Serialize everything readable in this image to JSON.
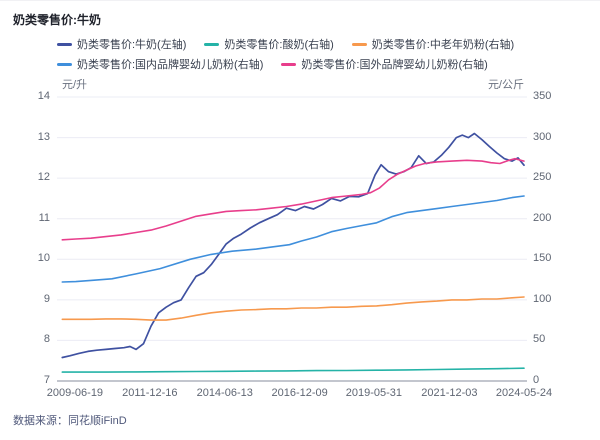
{
  "title": "奶类零售价:牛奶",
  "footer": {
    "source": "数据来源：同花顺iFinD"
  },
  "chart_data": {
    "type": "line",
    "title": "奶类零售价:牛奶",
    "legend_position": "top",
    "grid": true,
    "x_axis": {
      "min_year": 2009.04,
      "max_year": 2024.4,
      "tick_years": [
        2009.47,
        2011.96,
        2014.45,
        2016.94,
        2019.41,
        2021.92,
        2024.4
      ],
      "tick_labels": [
        "2009-06-19",
        "2011-12-16",
        "2014-06-13",
        "2016-12-09",
        "2019-05-31",
        "2021-12-03",
        "2024-05-24"
      ]
    },
    "left_axis": {
      "unit": "元/升",
      "min": 7,
      "max": 14,
      "ticks": [
        14,
        13,
        12,
        11,
        10,
        9,
        8,
        7
      ]
    },
    "right_axis": {
      "unit": "元/公斤",
      "min": 0,
      "max": 350,
      "ticks": [
        350,
        300,
        250,
        200,
        150,
        100,
        50,
        0
      ]
    },
    "grid_color": "#ebecf4",
    "axis_line_color": "#878e9c",
    "series": [
      {
        "name": "奶类零售价:牛奶(左轴)",
        "color": "#3f51a1",
        "axis": "left",
        "width": 1.7,
        "points": [
          [
            2009.05,
            7.58
          ],
          [
            2009.3,
            7.62
          ],
          [
            2009.6,
            7.68
          ],
          [
            2009.9,
            7.73
          ],
          [
            2010.2,
            7.76
          ],
          [
            2010.5,
            7.78
          ],
          [
            2010.8,
            7.8
          ],
          [
            2011.1,
            7.82
          ],
          [
            2011.3,
            7.85
          ],
          [
            2011.5,
            7.78
          ],
          [
            2011.75,
            7.92
          ],
          [
            2012.0,
            8.35
          ],
          [
            2012.25,
            8.68
          ],
          [
            2012.5,
            8.82
          ],
          [
            2012.75,
            8.93
          ],
          [
            2013.0,
            9.0
          ],
          [
            2013.25,
            9.3
          ],
          [
            2013.5,
            9.58
          ],
          [
            2013.75,
            9.67
          ],
          [
            2014.0,
            9.87
          ],
          [
            2014.25,
            10.12
          ],
          [
            2014.5,
            10.38
          ],
          [
            2014.75,
            10.52
          ],
          [
            2015.0,
            10.62
          ],
          [
            2015.3,
            10.77
          ],
          [
            2015.6,
            10.9
          ],
          [
            2015.9,
            11.0
          ],
          [
            2016.2,
            11.1
          ],
          [
            2016.5,
            11.26
          ],
          [
            2016.8,
            11.2
          ],
          [
            2017.1,
            11.3
          ],
          [
            2017.4,
            11.24
          ],
          [
            2017.7,
            11.35
          ],
          [
            2018.0,
            11.5
          ],
          [
            2018.3,
            11.44
          ],
          [
            2018.6,
            11.55
          ],
          [
            2018.9,
            11.54
          ],
          [
            2019.2,
            11.62
          ],
          [
            2019.45,
            12.08
          ],
          [
            2019.65,
            12.33
          ],
          [
            2019.9,
            12.16
          ],
          [
            2020.15,
            12.1
          ],
          [
            2020.4,
            12.16
          ],
          [
            2020.65,
            12.26
          ],
          [
            2020.9,
            12.55
          ],
          [
            2021.15,
            12.36
          ],
          [
            2021.4,
            12.4
          ],
          [
            2021.65,
            12.56
          ],
          [
            2021.9,
            12.76
          ],
          [
            2022.15,
            13.0
          ],
          [
            2022.35,
            13.06
          ],
          [
            2022.55,
            13.0
          ],
          [
            2022.75,
            13.1
          ],
          [
            2023.0,
            12.95
          ],
          [
            2023.25,
            12.78
          ],
          [
            2023.5,
            12.62
          ],
          [
            2023.75,
            12.48
          ],
          [
            2024.0,
            12.42
          ],
          [
            2024.2,
            12.5
          ],
          [
            2024.4,
            12.32
          ]
        ]
      },
      {
        "name": "奶类零售价:酸奶(右轴)",
        "color": "#25b3a7",
        "axis": "right",
        "width": 1.6,
        "points": [
          [
            2009.05,
            11
          ],
          [
            2010.5,
            11
          ],
          [
            2011.5,
            11.2
          ],
          [
            2012.5,
            11.5
          ],
          [
            2013.5,
            11.7
          ],
          [
            2014.5,
            12
          ],
          [
            2015.5,
            12.2
          ],
          [
            2016.5,
            12.5
          ],
          [
            2017.5,
            12.8
          ],
          [
            2018.5,
            13
          ],
          [
            2019.5,
            13.3
          ],
          [
            2020.5,
            13.7
          ],
          [
            2021.5,
            14.2
          ],
          [
            2022.5,
            14.7
          ],
          [
            2023.5,
            15.2
          ],
          [
            2024.4,
            15.8
          ]
        ]
      },
      {
        "name": "奶类零售价:中老年奶粉(右轴)",
        "color": "#f7994d",
        "axis": "right",
        "width": 1.6,
        "points": [
          [
            2009.05,
            76
          ],
          [
            2010.0,
            76
          ],
          [
            2010.5,
            76.5
          ],
          [
            2011.0,
            76.5
          ],
          [
            2011.5,
            76
          ],
          [
            2012.0,
            75
          ],
          [
            2012.5,
            75
          ],
          [
            2013.0,
            77.5
          ],
          [
            2013.5,
            81
          ],
          [
            2014.0,
            84
          ],
          [
            2014.5,
            86
          ],
          [
            2015.0,
            87.5
          ],
          [
            2015.5,
            88
          ],
          [
            2016.0,
            89
          ],
          [
            2016.5,
            89
          ],
          [
            2017.0,
            90
          ],
          [
            2017.5,
            90
          ],
          [
            2018.0,
            91
          ],
          [
            2018.5,
            91
          ],
          [
            2019.0,
            92
          ],
          [
            2019.5,
            92.5
          ],
          [
            2020.0,
            94
          ],
          [
            2020.5,
            96
          ],
          [
            2021.0,
            97.5
          ],
          [
            2021.5,
            98.5
          ],
          [
            2022.0,
            100
          ],
          [
            2022.5,
            100
          ],
          [
            2023.0,
            101
          ],
          [
            2023.5,
            101
          ],
          [
            2024.0,
            102.5
          ],
          [
            2024.4,
            103.5
          ]
        ]
      },
      {
        "name": "奶类零售价:国内品牌婴幼儿奶粉(右轴)",
        "color": "#3f8fdc",
        "axis": "right",
        "width": 1.6,
        "points": [
          [
            2009.05,
            122
          ],
          [
            2009.5,
            122.5
          ],
          [
            2010.0,
            124
          ],
          [
            2010.7,
            126
          ],
          [
            2011.5,
            132
          ],
          [
            2012.3,
            138.5
          ],
          [
            2013.3,
            150
          ],
          [
            2014.0,
            156
          ],
          [
            2014.7,
            160
          ],
          [
            2015.5,
            162.5
          ],
          [
            2016.0,
            165
          ],
          [
            2016.6,
            168
          ],
          [
            2017.0,
            172.5
          ],
          [
            2017.5,
            177.5
          ],
          [
            2018.0,
            184
          ],
          [
            2018.5,
            188
          ],
          [
            2019.0,
            191.5
          ],
          [
            2019.5,
            195
          ],
          [
            2020.0,
            202.5
          ],
          [
            2020.5,
            207.5
          ],
          [
            2021.0,
            210
          ],
          [
            2021.5,
            212.5
          ],
          [
            2022.0,
            215
          ],
          [
            2022.5,
            217.5
          ],
          [
            2023.0,
            220
          ],
          [
            2023.5,
            222.5
          ],
          [
            2024.0,
            226
          ],
          [
            2024.4,
            228
          ]
        ]
      },
      {
        "name": "奶类零售价:国外品牌婴幼儿奶粉(右轴)",
        "color": "#e83e8c",
        "axis": "right",
        "width": 1.6,
        "points": [
          [
            2009.05,
            174
          ],
          [
            2009.5,
            175
          ],
          [
            2010.0,
            176
          ],
          [
            2010.5,
            178
          ],
          [
            2011.0,
            180
          ],
          [
            2011.5,
            183
          ],
          [
            2012.0,
            186
          ],
          [
            2012.5,
            191
          ],
          [
            2013.0,
            197
          ],
          [
            2013.5,
            203
          ],
          [
            2014.0,
            206
          ],
          [
            2014.5,
            209
          ],
          [
            2015.0,
            210
          ],
          [
            2015.5,
            211
          ],
          [
            2016.0,
            213
          ],
          [
            2016.5,
            215
          ],
          [
            2017.0,
            218
          ],
          [
            2017.5,
            222
          ],
          [
            2018.0,
            226
          ],
          [
            2018.5,
            228
          ],
          [
            2019.0,
            230
          ],
          [
            2019.3,
            232
          ],
          [
            2019.6,
            238
          ],
          [
            2019.9,
            248
          ],
          [
            2020.2,
            255
          ],
          [
            2020.5,
            260
          ],
          [
            2020.8,
            265
          ],
          [
            2021.1,
            268
          ],
          [
            2021.5,
            270
          ],
          [
            2022.0,
            271
          ],
          [
            2022.5,
            272
          ],
          [
            2023.0,
            271
          ],
          [
            2023.3,
            269
          ],
          [
            2023.6,
            268
          ],
          [
            2023.9,
            272
          ],
          [
            2024.1,
            274
          ],
          [
            2024.4,
            271
          ]
        ]
      }
    ]
  }
}
